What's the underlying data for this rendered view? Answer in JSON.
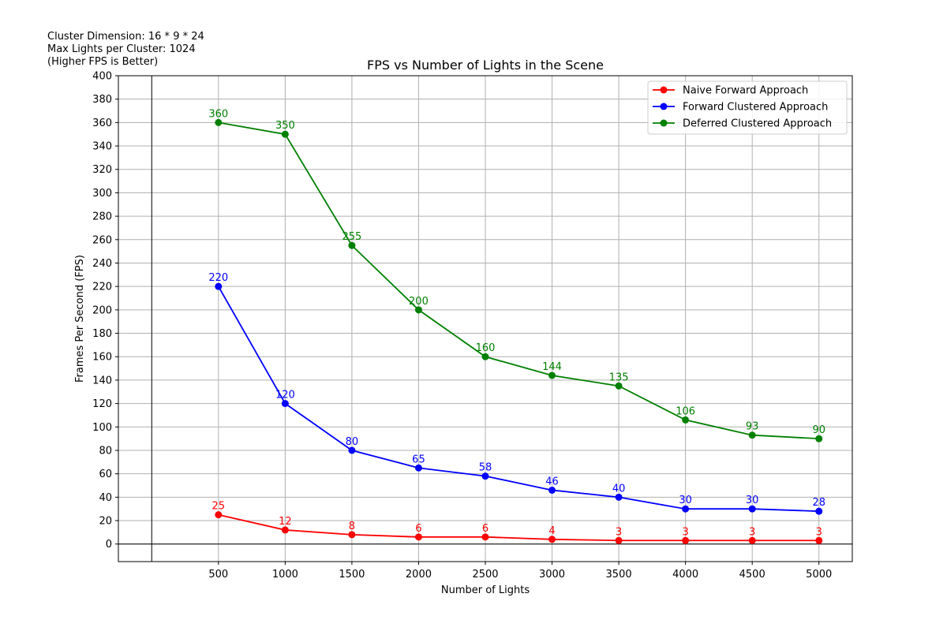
{
  "annotation_lines": [
    "Cluster Dimension: 16 * 9 * 24",
    "Max Lights per Cluster: 1024",
    "(Higher FPS is Better)"
  ],
  "chart_data": {
    "type": "line",
    "title": "FPS vs Number of Lights in the Scene",
    "xlabel": "Number of Lights",
    "ylabel": "Frames Per Second (FPS)",
    "x": [
      500,
      1000,
      1500,
      2000,
      2500,
      3000,
      3500,
      4000,
      4500,
      5000
    ],
    "xlim": [
      -250,
      5250
    ],
    "ylim": [
      -15,
      400
    ],
    "xticks": [
      500,
      1000,
      1500,
      2000,
      2500,
      3000,
      3500,
      4000,
      4500,
      5000
    ],
    "yticks": [
      0,
      20,
      40,
      60,
      80,
      100,
      120,
      140,
      160,
      180,
      200,
      220,
      240,
      260,
      280,
      300,
      320,
      340,
      360,
      380,
      400
    ],
    "grid": true,
    "reference_lines": {
      "x": 0,
      "y": 0
    },
    "legend_position": "top-right",
    "series": [
      {
        "name": "Naive Forward Approach",
        "color": "#ff0000",
        "values": [
          25,
          12,
          8,
          6,
          6,
          4,
          3,
          3,
          3,
          3
        ]
      },
      {
        "name": "Forward Clustered Approach",
        "color": "#0000ff",
        "values": [
          220,
          120,
          80,
          65,
          58,
          46,
          40,
          30,
          30,
          28
        ]
      },
      {
        "name": "Deferred Clustered Approach",
        "color": "#008000",
        "values": [
          360,
          350,
          255,
          200,
          160,
          144,
          135,
          106,
          93,
          90
        ]
      }
    ]
  }
}
